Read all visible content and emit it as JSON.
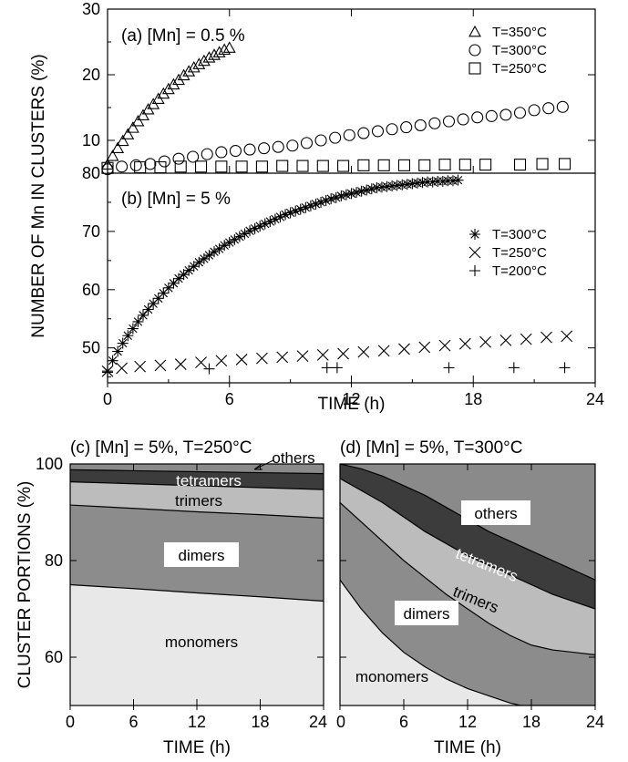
{
  "chart_data": [
    {
      "id": "a",
      "type": "scatter",
      "title": "(a) [Mn] = 0.5 %",
      "ylim": [
        5,
        30
      ],
      "yticks": [
        10,
        20,
        30
      ],
      "series": [
        {
          "name": "T=350°C",
          "marker": "triangle",
          "x": [
            0,
            0.25,
            0.5,
            0.75,
            1,
            1.25,
            1.5,
            1.75,
            2,
            2.25,
            2.5,
            2.75,
            3,
            3.25,
            3.5,
            3.75,
            4,
            4.25,
            4.5,
            4.75,
            5,
            5.25,
            5.5,
            5.75,
            6
          ],
          "y": [
            6.3,
            7.6,
            8.8,
            9.9,
            10.9,
            11.9,
            12.9,
            13.8,
            14.7,
            15.5,
            16.3,
            17.1,
            17.8,
            18.5,
            19.2,
            19.9,
            20.5,
            21.1,
            21.6,
            22.1,
            22.6,
            23.0,
            23.4,
            23.8,
            24.1
          ]
        },
        {
          "name": "T=300°C",
          "marker": "circle",
          "x": [
            0,
            0.7,
            1.4,
            2.1,
            2.8,
            3.5,
            4.2,
            4.9,
            5.6,
            6.3,
            7,
            7.7,
            8.4,
            9.1,
            9.8,
            10.5,
            11.2,
            11.9,
            12.6,
            13.3,
            14,
            14.7,
            15.4,
            16.1,
            16.8,
            17.5,
            18.2,
            18.9,
            19.6,
            20.3,
            21,
            21.7,
            22.4
          ],
          "y": [
            5.6,
            6.0,
            6.2,
            6.4,
            6.8,
            7.2,
            7.5,
            7.9,
            8.2,
            8.4,
            8.6,
            8.8,
            9.0,
            9.2,
            9.6,
            10.0,
            10.4,
            10.8,
            11.1,
            11.4,
            11.7,
            12.0,
            12.3,
            12.6,
            12.9,
            13.2,
            13.5,
            13.7,
            13.9,
            14.2,
            14.6,
            14.9,
            15.1
          ]
        },
        {
          "name": "T=250°C",
          "marker": "square",
          "x": [
            0,
            1.6,
            2.6,
            3.6,
            4.6,
            5.6,
            6.6,
            7.6,
            8.6,
            9.6,
            10.6,
            11.6,
            12.6,
            13.6,
            14.6,
            15.6,
            16.6,
            17.6,
            18.6,
            20.3,
            21.4,
            22.5
          ],
          "y": [
            5.8,
            5.9,
            5.9,
            6.0,
            6.0,
            6.0,
            6.0,
            6.0,
            6.1,
            6.1,
            6.1,
            6.1,
            6.2,
            6.2,
            6.2,
            6.2,
            6.3,
            6.3,
            6.3,
            6.3,
            6.4,
            6.4
          ]
        }
      ]
    },
    {
      "id": "b",
      "type": "scatter",
      "title": "(b) [Mn] = 5 %",
      "ylim": [
        44,
        80
      ],
      "yticks": [
        50,
        60,
        70,
        80
      ],
      "series": [
        {
          "name": "T=300°C",
          "marker": "asterisk",
          "x": [
            0,
            0.25,
            0.5,
            0.75,
            1,
            1.25,
            1.5,
            1.75,
            2,
            2.25,
            2.5,
            2.75,
            3,
            3.25,
            3.5,
            3.75,
            4,
            4.25,
            4.5,
            4.75,
            5,
            5.25,
            5.5,
            5.75,
            6,
            6.25,
            6.5,
            6.75,
            7,
            7.25,
            7.5,
            7.75,
            8,
            8.25,
            8.5,
            8.75,
            9,
            9.25,
            9.5,
            9.75,
            10,
            10.25,
            10.5,
            10.75,
            11,
            11.25,
            11.5,
            11.75,
            12,
            12.25,
            12.5,
            12.75,
            13,
            13.25,
            13.5,
            13.75,
            14,
            14.25,
            14.5,
            14.75,
            15,
            15.25,
            15.5,
            15.75,
            16,
            16.25,
            16.5,
            16.75,
            17,
            17.25
          ],
          "y": [
            46.0,
            47.8,
            49.4,
            50.8,
            52.1,
            53.3,
            54.5,
            55.6,
            56.6,
            57.6,
            58.5,
            59.4,
            60.3,
            61.1,
            61.9,
            62.6,
            63.3,
            64.0,
            64.7,
            65.3,
            65.9,
            66.5,
            67.0,
            67.6,
            68.1,
            68.6,
            69.1,
            69.6,
            70.1,
            70.5,
            70.9,
            71.3,
            71.7,
            72.1,
            72.5,
            72.9,
            73.2,
            73.5,
            73.8,
            74.1,
            74.4,
            74.7,
            75.0,
            75.3,
            75.6,
            75.8,
            76.1,
            76.3,
            76.5,
            76.7,
            76.9,
            77.1,
            77.3,
            77.5,
            77.6,
            77.7,
            77.8,
            77.9,
            78.0,
            78.1,
            78.2,
            78.3,
            78.4,
            78.5,
            78.5,
            78.6,
            78.6,
            78.7,
            78.7,
            78.8
          ]
        },
        {
          "name": "T=250°C",
          "marker": "cross",
          "x": [
            0,
            0.7,
            1.6,
            2.6,
            3.6,
            4.6,
            5.6,
            6.6,
            7.6,
            8.6,
            9.6,
            10.6,
            11.6,
            12.6,
            13.6,
            14.6,
            15.6,
            16.6,
            17.6,
            18.6,
            19.6,
            20.6,
            21.6,
            22.6
          ],
          "y": [
            46.0,
            46.5,
            46.8,
            47.0,
            47.2,
            47.5,
            47.8,
            48.0,
            48.2,
            48.4,
            48.6,
            48.8,
            49.0,
            49.3,
            49.5,
            49.8,
            50.1,
            50.4,
            50.7,
            51.0,
            51.3,
            51.5,
            51.8,
            52.0
          ]
        },
        {
          "name": "T=200°C",
          "marker": "plus",
          "x": [
            0,
            5,
            10.8,
            11.3,
            16.8,
            20,
            22.5
          ],
          "y": [
            45.8,
            46.4,
            46.6,
            46.6,
            46.6,
            46.6,
            46.6
          ]
        }
      ]
    },
    {
      "id": "c",
      "type": "area",
      "title": "(c) [Mn] = 5%, T=250°C",
      "xlim": [
        0,
        24
      ],
      "ylim": [
        50,
        100
      ],
      "xticks": [
        0,
        6,
        12,
        18,
        24
      ],
      "yticks": [
        60,
        80,
        100
      ],
      "ylabel": "CLUSTER PORTIONS (%)",
      "xlabel": "TIME (h)",
      "boundaries": [
        {
          "label": "monomers",
          "x": [
            0,
            6,
            12,
            18,
            24
          ],
          "y": [
            75.0,
            74.2,
            73.3,
            72.5,
            71.6
          ]
        },
        {
          "label": "dimers",
          "x": [
            0,
            6,
            12,
            18,
            24
          ],
          "y": [
            91.5,
            90.8,
            90.1,
            89.5,
            88.8
          ]
        },
        {
          "label": "trimers",
          "x": [
            0,
            6,
            12,
            18,
            24
          ],
          "y": [
            96.3,
            95.9,
            95.5,
            95.1,
            94.7
          ]
        },
        {
          "label": "tetramers",
          "x": [
            0,
            6,
            12,
            18,
            24
          ],
          "y": [
            98.8,
            98.6,
            98.4,
            98.2,
            98.0
          ]
        }
      ],
      "region_labels": [
        "monomers",
        "dimers",
        "trimers",
        "tetramers",
        "others"
      ]
    },
    {
      "id": "d",
      "type": "area",
      "title": "(d) [Mn] = 5%, T=300°C",
      "xlim": [
        0,
        24
      ],
      "ylim": [
        50,
        100
      ],
      "xticks": [
        0,
        6,
        12,
        18,
        24
      ],
      "yticks": [
        60,
        80,
        100
      ],
      "xlabel": "TIME (h)",
      "boundaries": [
        {
          "label": "monomers",
          "x": [
            0,
            2,
            4,
            6,
            8,
            10,
            12,
            14,
            16,
            17,
            24
          ],
          "y": [
            76.0,
            70.0,
            65.0,
            61.0,
            58.0,
            55.5,
            53.5,
            52.0,
            50.5,
            50.0,
            50.0
          ]
        },
        {
          "label": "dimers",
          "x": [
            0,
            2,
            4,
            6,
            8,
            10,
            12,
            14,
            16,
            18,
            20,
            22,
            24
          ],
          "y": [
            92.0,
            88.0,
            84.0,
            80.0,
            76.5,
            73.0,
            70.0,
            67.0,
            64.5,
            62.5,
            61.5,
            61.0,
            60.5
          ]
        },
        {
          "label": "trimers",
          "x": [
            0,
            2,
            4,
            6,
            8,
            10,
            12,
            14,
            16,
            18,
            20,
            22,
            24
          ],
          "y": [
            97.0,
            94.5,
            92.0,
            89.0,
            86.0,
            83.5,
            81.0,
            79.0,
            77.0,
            75.0,
            73.0,
            71.5,
            70.0
          ]
        },
        {
          "label": "tetramers",
          "x": [
            0,
            2,
            4,
            6,
            8,
            10,
            12,
            14,
            16,
            18,
            20,
            22,
            24
          ],
          "y": [
            100.0,
            99.0,
            97.5,
            95.5,
            93.5,
            91.0,
            88.5,
            86.0,
            84.0,
            82.0,
            80.0,
            78.0,
            76.0
          ]
        }
      ],
      "region_labels": [
        "monomers",
        "dimers",
        "trimers",
        "tetramers",
        "others"
      ]
    }
  ],
  "shared": {
    "top_xlim": [
      0,
      24
    ],
    "top_xticks": [
      0,
      6,
      12,
      18,
      24
    ],
    "top_xlabel": "TIME (h)",
    "top_ylabel": "NUMBER OF Mn IN CLUSTERS (%)"
  },
  "colors": {
    "monomers": "#e8e8e8",
    "dimers": "#8c8c8c",
    "trimers": "#bcbcbc",
    "tetramers": "#3c3c3c",
    "others": "#8a8a8a"
  }
}
